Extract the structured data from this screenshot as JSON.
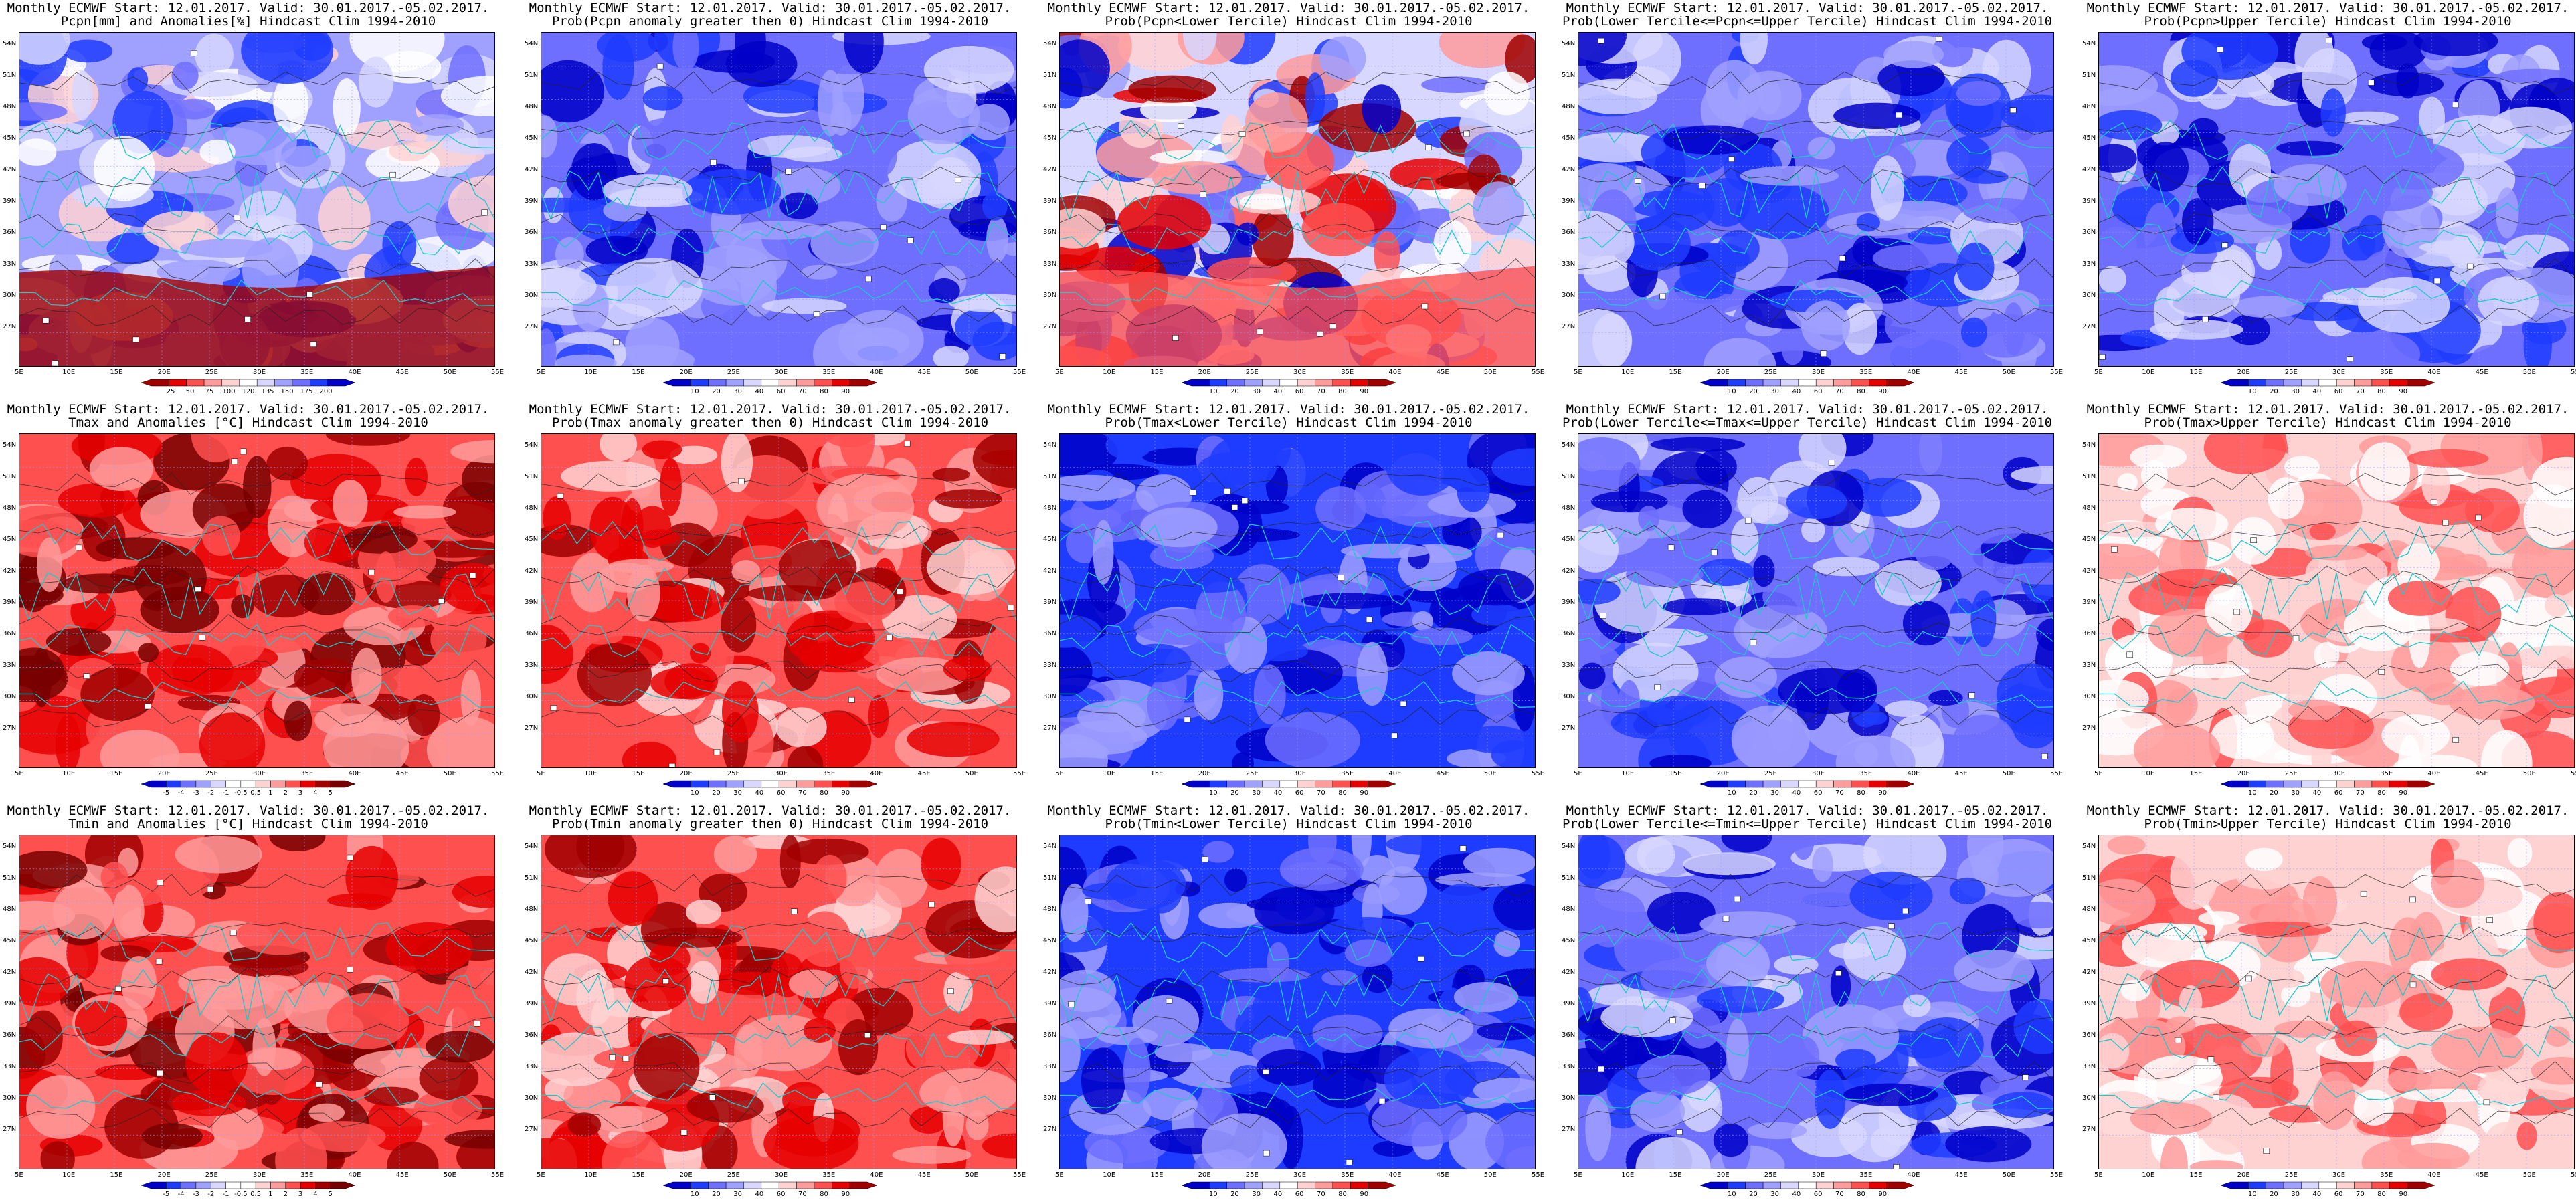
{
  "common": {
    "title_line1": "Monthly ECMWF Start: 12.01.2017. Valid: 30.01.2017.-05.02.2017.",
    "lon_labels": [
      "5E",
      "10E",
      "15E",
      "20E",
      "25E",
      "30E",
      "35E",
      "40E",
      "45E",
      "50E",
      "55E"
    ],
    "lat_labels": [
      "54N",
      "51N",
      "48N",
      "45N",
      "42N",
      "39N",
      "36N",
      "33N",
      "30N",
      "27N"
    ]
  },
  "panels": [
    {
      "id": "pcpn-anom",
      "title_line2": "Pcpn[mm] and Anomalies[%] Hindcast Clim 1994-2010",
      "scheme": "precip",
      "cbar_labels": [
        "25",
        "50",
        "75",
        "100",
        "120",
        "135",
        "150",
        "175",
        "200"
      ],
      "bias": "dry"
    },
    {
      "id": "pcpn-prob-pos",
      "title_line2": "Prob(Pcpn anomaly greater then 0) Hindcast Clim 1994-2010",
      "scheme": "prob",
      "cbar_labels": [
        "10",
        "20",
        "30",
        "40",
        "60",
        "70",
        "80",
        "90"
      ],
      "bias": "blue"
    },
    {
      "id": "pcpn-prob-lower",
      "title_line2": "Prob(Pcpn<Lower Tercile) Hindcast Clim 1994-2010",
      "scheme": "prob",
      "cbar_labels": [
        "10",
        "20",
        "30",
        "40",
        "60",
        "70",
        "80",
        "90"
      ],
      "bias": "mixed"
    },
    {
      "id": "pcpn-prob-mid",
      "title_line2": "Prob(Lower Tercile<=Pcpn<=Upper Tercile) Hindcast Clim 1994-2010",
      "scheme": "prob",
      "cbar_labels": [
        "10",
        "20",
        "30",
        "40",
        "60",
        "70",
        "80",
        "90"
      ],
      "bias": "blue"
    },
    {
      "id": "pcpn-prob-upper",
      "title_line2": "Prob(Pcpn>Upper Tercile) Hindcast Clim 1994-2010",
      "scheme": "prob",
      "cbar_labels": [
        "10",
        "20",
        "30",
        "40",
        "60",
        "70",
        "80",
        "90"
      ],
      "bias": "blue"
    },
    {
      "id": "tmax-anom",
      "title_line2": "Tmax and Anomalies [°C] Hindcast Clim 1994-2010",
      "scheme": "anom",
      "cbar_labels": [
        "-5",
        "-4",
        "-3",
        "-2",
        "-1",
        "-0.5",
        "0.5",
        "1",
        "2",
        "3",
        "4",
        "5"
      ],
      "bias": "red"
    },
    {
      "id": "tmax-prob-pos",
      "title_line2": "Prob(Tmax anomaly greater then 0) Hindcast Clim 1994-2010",
      "scheme": "prob",
      "cbar_labels": [
        "10",
        "20",
        "30",
        "40",
        "60",
        "70",
        "80",
        "90"
      ],
      "bias": "red"
    },
    {
      "id": "tmax-prob-lower",
      "title_line2": "Prob(Tmax<Lower Tercile) Hindcast Clim 1994-2010",
      "scheme": "prob",
      "cbar_labels": [
        "10",
        "20",
        "30",
        "40",
        "60",
        "70",
        "80",
        "90"
      ],
      "bias": "deepblue"
    },
    {
      "id": "tmax-prob-mid",
      "title_line2": "Prob(Lower Tercile<=Tmax<=Upper Tercile) Hindcast Clim 1994-2010",
      "scheme": "prob",
      "cbar_labels": [
        "10",
        "20",
        "30",
        "40",
        "60",
        "70",
        "80",
        "90"
      ],
      "bias": "blue"
    },
    {
      "id": "tmax-prob-upper",
      "title_line2": "Prob(Tmax>Upper Tercile) Hindcast Clim 1994-2010",
      "scheme": "prob",
      "cbar_labels": [
        "10",
        "20",
        "30",
        "40",
        "60",
        "70",
        "80",
        "90"
      ],
      "bias": "lightred"
    },
    {
      "id": "tmin-anom",
      "title_line2": "Tmin and Anomalies [°C] Hindcast Clim 1994-2010",
      "scheme": "anom",
      "cbar_labels": [
        "-5",
        "-4",
        "-3",
        "-2",
        "-1",
        "-0.5",
        "0.5",
        "1",
        "2",
        "3",
        "4",
        "5"
      ],
      "bias": "red"
    },
    {
      "id": "tmin-prob-pos",
      "title_line2": "Prob(Tmin anomaly greater then 0) Hindcast Clim 1994-2010",
      "scheme": "prob",
      "cbar_labels": [
        "10",
        "20",
        "30",
        "40",
        "60",
        "70",
        "80",
        "90"
      ],
      "bias": "red"
    },
    {
      "id": "tmin-prob-lower",
      "title_line2": "Prob(Tmin<Lower Tercile) Hindcast Clim 1994-2010",
      "scheme": "prob",
      "cbar_labels": [
        "10",
        "20",
        "30",
        "40",
        "60",
        "70",
        "80",
        "90"
      ],
      "bias": "deepblue"
    },
    {
      "id": "tmin-prob-mid",
      "title_line2": "Prob(Lower Tercile<=Tmin<=Upper Tercile) Hindcast Clim 1994-2010",
      "scheme": "prob",
      "cbar_labels": [
        "10",
        "20",
        "30",
        "40",
        "60",
        "70",
        "80",
        "90"
      ],
      "bias": "blue"
    },
    {
      "id": "tmin-prob-upper",
      "title_line2": "Prob(Tmin>Upper Tercile) Hindcast Clim 1994-2010",
      "scheme": "prob",
      "cbar_labels": [
        "10",
        "20",
        "30",
        "40",
        "60",
        "70",
        "80",
        "90"
      ],
      "bias": "lightred"
    }
  ],
  "palettes": {
    "prob": [
      "#0000c8",
      "#1e3cff",
      "#6e6eff",
      "#a0a0ff",
      "#d7d7ff",
      "#ffffff",
      "#ffd2d2",
      "#ff9b9b",
      "#ff5050",
      "#e60000",
      "#a00000"
    ],
    "anom": [
      "#0000c8",
      "#1e3cff",
      "#6e6eff",
      "#a0a0ff",
      "#d7d7ff",
      "#ffffff",
      "#ffffff",
      "#ffd2d2",
      "#ff9b9b",
      "#ff5050",
      "#e60000",
      "#a00000",
      "#780000"
    ],
    "precip": [
      "#a00000",
      "#e60000",
      "#ff5050",
      "#ff9b9b",
      "#ffd2d2",
      "#ffffff",
      "#d7d7ff",
      "#a0a0ff",
      "#6e6eff",
      "#1e3cff",
      "#0000c8"
    ]
  },
  "line_colors": {
    "coast": "#1ec8c8",
    "contour": "#222222",
    "grid": "#9a9aff"
  }
}
